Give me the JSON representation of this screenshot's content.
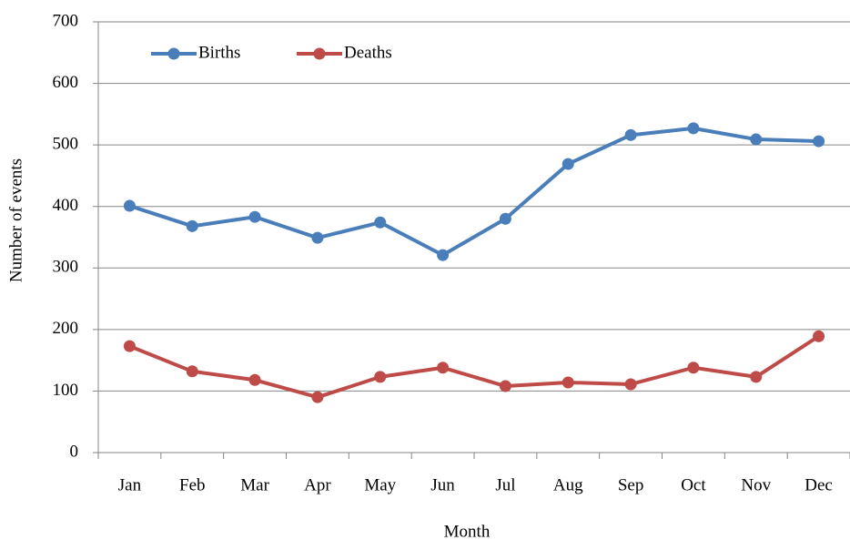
{
  "chart_data": {
    "type": "line",
    "x_label": "Month",
    "y_label": "Number of events",
    "categories": [
      "Jan",
      "Feb",
      "Mar",
      "Apr",
      "May",
      "Jun",
      "Jul",
      "Aug",
      "Sep",
      "Oct",
      "Nov",
      "Dec"
    ],
    "series": [
      {
        "name": "Births",
        "color": "#4a7ebb",
        "values": [
          401,
          368,
          383,
          349,
          374,
          321,
          380,
          469,
          516,
          527,
          509,
          506
        ]
      },
      {
        "name": "Deaths",
        "color": "#be4b48",
        "values": [
          173,
          132,
          118,
          90,
          123,
          138,
          108,
          114,
          111,
          138,
          123,
          189
        ]
      }
    ],
    "ylim": [
      0,
      700
    ],
    "yticks": [
      0,
      100,
      200,
      300,
      400,
      500,
      600,
      700
    ],
    "grid": true,
    "legend": "upper left"
  }
}
